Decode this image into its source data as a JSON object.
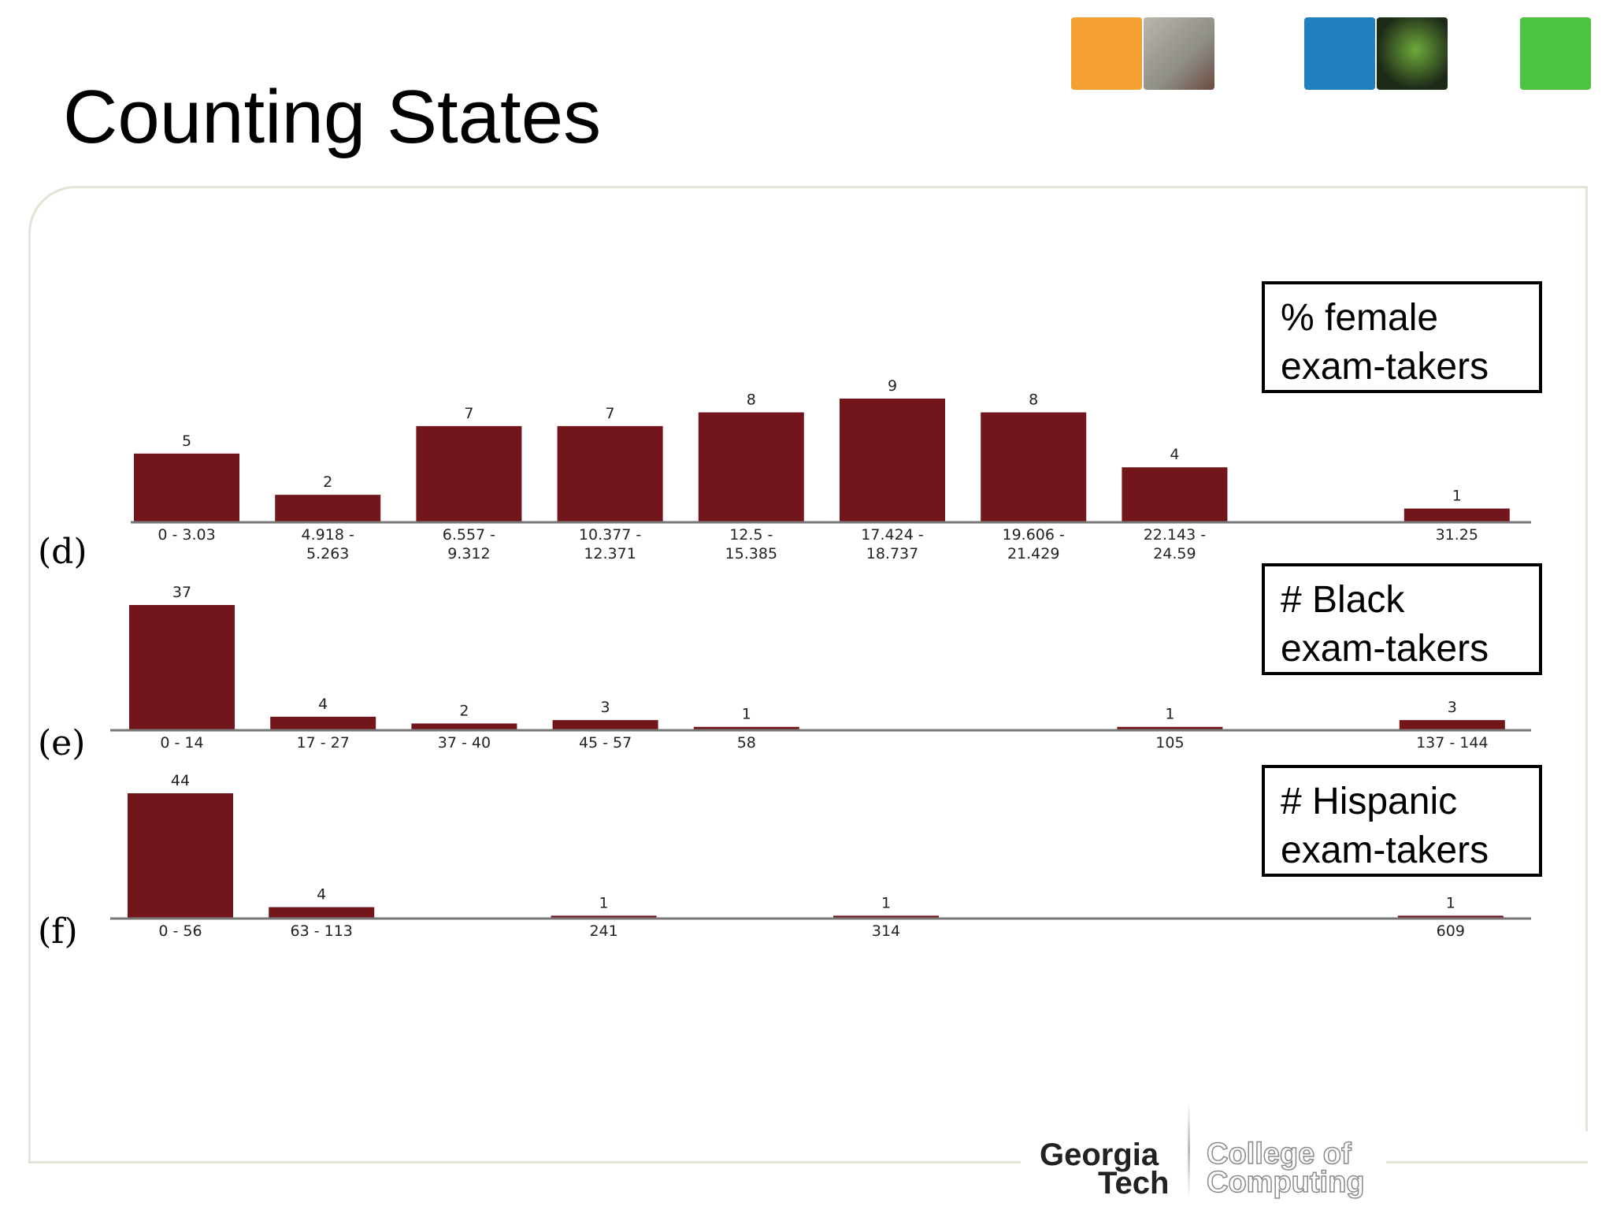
{
  "slide": {
    "title": "Counting States"
  },
  "logo": {
    "line1": "Georgia",
    "line2": "Tech",
    "line3": "College of",
    "line4": "Computing"
  },
  "colors": {
    "bar": "#73161c",
    "tile_orange": "#f5a032",
    "tile_blue": "#1f7fbf",
    "tile_green": "#4cc443",
    "tile_photo1": "#8e8d86",
    "tile_photo2": "#1d2a18"
  },
  "chart_data": [
    {
      "type": "bar",
      "panel_label": "(d)",
      "legend": "% female\nexam-takers",
      "categories": [
        "0 - 3.03",
        "4.918 -\n5.263",
        "6.557 -\n9.312",
        "10.377 -\n12.371",
        "12.5 -\n15.385",
        "17.424 -\n18.737",
        "19.606 -\n21.429",
        "22.143 -\n24.59",
        "",
        "31.25"
      ],
      "values": [
        5,
        2,
        7,
        7,
        8,
        9,
        8,
        4,
        null,
        1
      ],
      "ylim": [
        0,
        9
      ],
      "grid": false
    },
    {
      "type": "bar",
      "panel_label": "(e)",
      "legend": "# Black\nexam-takers",
      "categories": [
        "0 - 14",
        "17 - 27",
        "37 - 40",
        "45 - 57",
        "58",
        "",
        "",
        "105",
        "",
        "137 - 144"
      ],
      "values": [
        37,
        4,
        2,
        3,
        1,
        null,
        null,
        1,
        null,
        3
      ],
      "ylim": [
        0,
        37
      ],
      "grid": false
    },
    {
      "type": "bar",
      "panel_label": "(f)",
      "legend": "# Hispanic\nexam-takers",
      "categories": [
        "0 - 56",
        "63 - 113",
        "",
        "241",
        "",
        "314",
        "",
        "",
        "",
        "609"
      ],
      "values": [
        44,
        4,
        null,
        1,
        null,
        1,
        null,
        null,
        null,
        1
      ],
      "ylim": [
        0,
        44
      ],
      "grid": false
    }
  ]
}
